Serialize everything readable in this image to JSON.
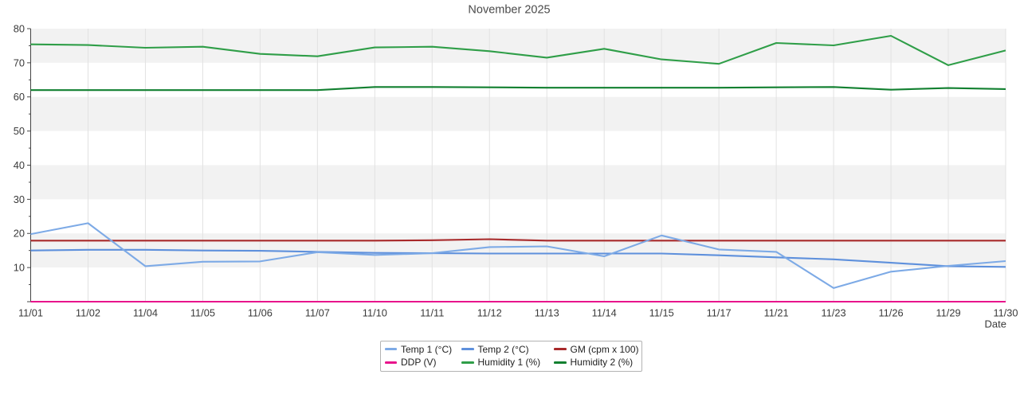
{
  "title": "November 2025",
  "x_axis_label": "Date",
  "chart_data": {
    "type": "line",
    "title": "November 2025",
    "xlabel": "Date",
    "ylabel": "",
    "ylim": [
      0,
      80
    ],
    "yticks": [
      10,
      20,
      30,
      40,
      50,
      60,
      70,
      80
    ],
    "grid": "vertical gridlines at each date; alternating gray/white horizontal bands every 10 units",
    "legend_position": "bottom-center, 2 rows x 3 columns, boxed",
    "categories": [
      "11/01",
      "11/02",
      "11/04",
      "11/05",
      "11/06",
      "11/07",
      "11/10",
      "11/11",
      "11/12",
      "11/13",
      "11/14",
      "11/15",
      "11/17",
      "11/21",
      "11/23",
      "11/26",
      "11/29",
      "11/30"
    ],
    "series": [
      {
        "name": "Temp 1 (°C)",
        "color": "#7daae6",
        "values": [
          19.8,
          23.0,
          10.4,
          11.7,
          11.8,
          14.5,
          13.7,
          14.2,
          16.0,
          16.2,
          13.3,
          19.4,
          15.3,
          14.6,
          4.0,
          8.8,
          10.5,
          11.9
        ]
      },
      {
        "name": "Temp 2 (°C)",
        "color": "#5e90dc",
        "values": [
          15.0,
          15.2,
          15.2,
          15.0,
          14.9,
          14.6,
          14.3,
          14.2,
          14.1,
          14.1,
          14.1,
          14.1,
          13.6,
          13.0,
          12.4,
          11.4,
          10.4,
          10.2
        ]
      },
      {
        "name": "GM (cpm x 100)",
        "color": "#a8292a",
        "values": [
          17.9,
          17.9,
          17.9,
          17.9,
          17.9,
          17.9,
          17.9,
          18.0,
          18.3,
          17.9,
          17.9,
          17.9,
          17.9,
          17.9,
          17.9,
          17.9,
          17.9,
          17.9
        ]
      },
      {
        "name": "DDP (V)",
        "color": "#e8148c",
        "values": [
          0,
          0,
          0,
          0,
          0,
          0,
          0,
          0,
          0,
          0,
          0,
          0,
          0,
          0,
          0,
          0,
          0,
          0
        ]
      },
      {
        "name": "Humidity 1 (%)",
        "color": "#2f9e48",
        "values": [
          75.4,
          75.2,
          74.4,
          74.7,
          72.6,
          71.9,
          74.5,
          74.7,
          73.4,
          71.5,
          74.1,
          71.0,
          69.7,
          75.8,
          75.1,
          77.9,
          69.3,
          73.6
        ]
      },
      {
        "name": "Humidity 2 (%)",
        "color": "#128030",
        "values": [
          62.0,
          62.0,
          62.0,
          62.0,
          62.0,
          62.0,
          62.9,
          62.9,
          62.8,
          62.7,
          62.7,
          62.7,
          62.7,
          62.8,
          62.9,
          62.1,
          62.6,
          62.3
        ]
      }
    ],
    "draw_order": [
      2,
      3,
      5,
      4,
      1,
      0
    ]
  },
  "style": {
    "band_gray": "#f2f2f2",
    "gridline": "#e2e2e2",
    "axis": "#444444",
    "tick_label_color": "#3a3a3a",
    "title_color": "#4a4a4a"
  }
}
